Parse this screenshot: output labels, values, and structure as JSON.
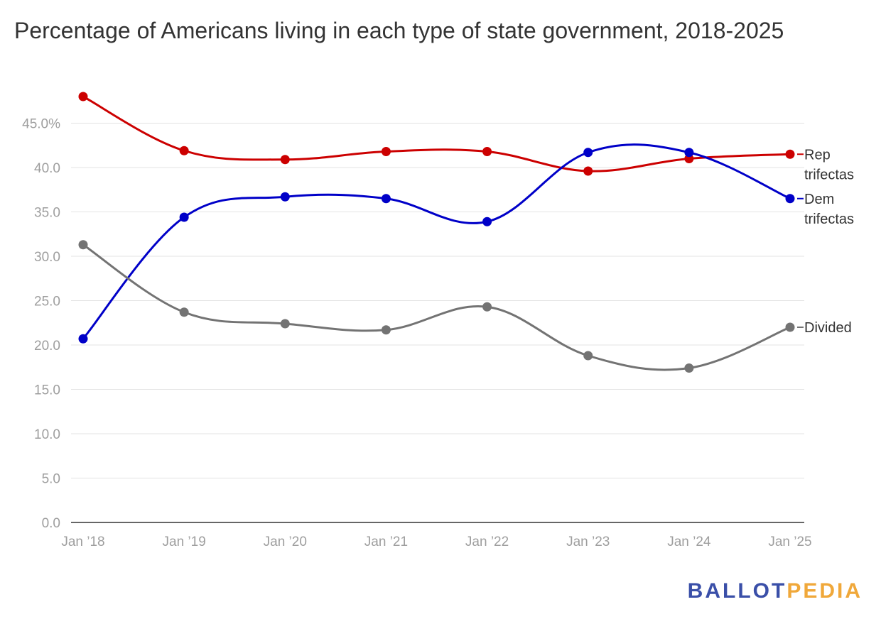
{
  "chart_data": {
    "type": "line",
    "title": "Percentage of Americans living in each type of state government, 2018-2025",
    "categories": [
      "Jan ’18",
      "Jan ’19",
      "Jan ’20",
      "Jan ’21",
      "Jan ’22",
      "Jan ’23",
      "Jan ’24",
      "Jan ’25"
    ],
    "ylim": [
      0,
      48
    ],
    "yticks": [
      "0.0",
      "5.0",
      "10.0",
      "15.0",
      "20.0",
      "25.0",
      "30.0",
      "35.0",
      "40.0",
      "45.0%"
    ],
    "grid": true,
    "series": [
      {
        "name": "Rep trifectas",
        "label_lines": [
          "Rep",
          "trifectas"
        ],
        "color": "#cc0000",
        "values": [
          48.0,
          41.9,
          40.9,
          41.8,
          41.8,
          39.6,
          41.0,
          41.5
        ]
      },
      {
        "name": "Dem trifectas",
        "label_lines": [
          "Dem",
          "trifectas"
        ],
        "color": "#0000c8",
        "values": [
          20.7,
          34.4,
          36.7,
          36.5,
          33.9,
          41.7,
          41.7,
          36.5
        ]
      },
      {
        "name": "Divided",
        "label_lines": [
          "Divided"
        ],
        "color": "#737373",
        "values": [
          31.3,
          23.7,
          22.4,
          21.7,
          24.3,
          18.8,
          17.4,
          22.0
        ]
      }
    ]
  },
  "logo": {
    "part_a": "BALLOT",
    "part_b": "PEDIA"
  }
}
